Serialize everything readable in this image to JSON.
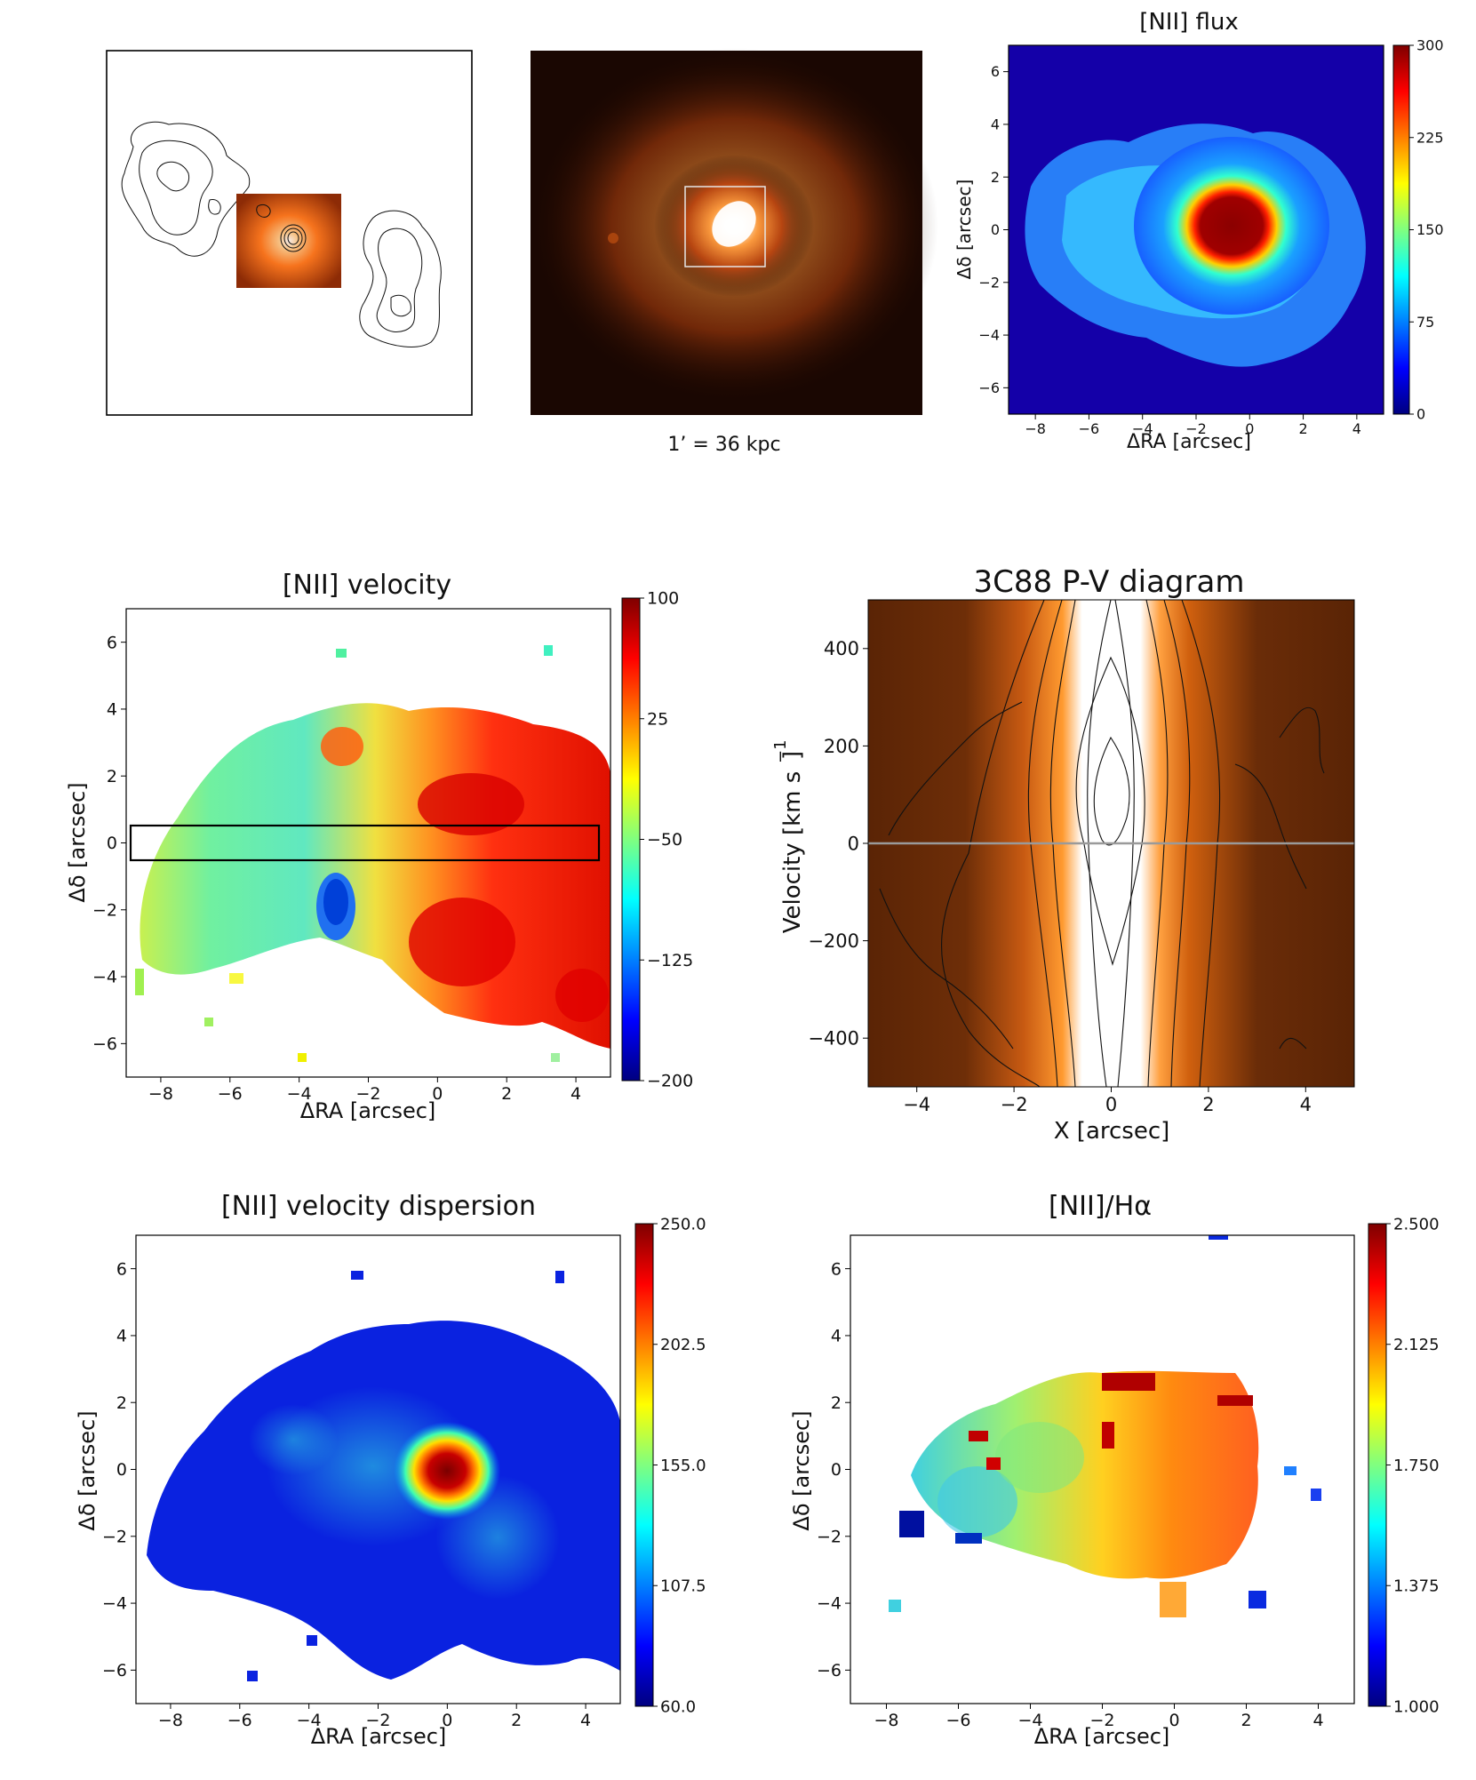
{
  "caption_scale": "1’ = 36 kpc",
  "chart_data": [
    {
      "id": "radio-overlay",
      "type": "image",
      "title": "",
      "description_elements": [
        "radio-contour-lobes",
        "optical-inset"
      ]
    },
    {
      "id": "optical",
      "type": "image",
      "title": "",
      "caption": "1’ = 36 kpc"
    },
    {
      "id": "flux",
      "type": "heatmap",
      "title": "[NII] flux",
      "xlabel": "ΔRA [arcsec]",
      "ylabel": "Δδ [arcsec]",
      "xlim": [
        -9,
        5
      ],
      "ylim": [
        -7,
        7
      ],
      "xticks": [
        "−8",
        "−6",
        "−4",
        "−2",
        "0",
        "2",
        "4"
      ],
      "yticks": [
        "−6",
        "−4",
        "−2",
        "0",
        "2",
        "4",
        "6"
      ],
      "colorbar": {
        "min": 0,
        "max": 300,
        "ticks": [
          "0",
          "75",
          "150",
          "225",
          "300"
        ],
        "colormap": "jet"
      }
    },
    {
      "id": "velocity",
      "type": "heatmap",
      "title": "[NII] velocity",
      "xlabel": "ΔRA [arcsec]",
      "ylabel": "Δδ [arcsec]",
      "xlim": [
        -9,
        5
      ],
      "ylim": [
        -7,
        7
      ],
      "xticks": [
        "−8",
        "−6",
        "−4",
        "−2",
        "0",
        "2",
        "4"
      ],
      "yticks": [
        "−6",
        "−4",
        "−2",
        "0",
        "2",
        "4",
        "6"
      ],
      "slit": {
        "x": [
          -8.9,
          4.8
        ],
        "y": [
          -0.55,
          0.5
        ]
      },
      "colorbar": {
        "min": -200,
        "max": 100,
        "ticks": [
          "−200",
          "−125",
          "−50",
          "25",
          "100"
        ],
        "colormap": "jet"
      }
    },
    {
      "id": "pv",
      "type": "heatmap",
      "title": "3C88 P-V diagram",
      "xlabel": "X [arcsec]",
      "ylabel": "Velocity [km s",
      "ylabel_sup": "−1",
      "ylabel_close": "]",
      "xlim": [
        -5,
        5
      ],
      "ylim": [
        -500,
        500
      ],
      "xticks": [
        "−4",
        "−2",
        "0",
        "2",
        "4"
      ],
      "yticks": [
        "−400",
        "−200",
        "0",
        "200",
        "400"
      ],
      "zero_line": 0
    },
    {
      "id": "dispersion",
      "type": "heatmap",
      "title": "[NII] velocity dispersion",
      "xlabel": "ΔRA [arcsec]",
      "ylabel": "Δδ [arcsec]",
      "xlim": [
        -9,
        5
      ],
      "ylim": [
        -7,
        7
      ],
      "xticks": [
        "−8",
        "−6",
        "−4",
        "−2",
        "0",
        "2",
        "4"
      ],
      "yticks": [
        "−6",
        "−4",
        "−2",
        "0",
        "2",
        "4",
        "6"
      ],
      "colorbar": {
        "min": 60,
        "max": 250,
        "ticks": [
          "60.0",
          "107.5",
          "155.0",
          "202.5",
          "250.0"
        ],
        "colormap": "jet"
      }
    },
    {
      "id": "ratio",
      "type": "heatmap",
      "title": "[NII]/Hα",
      "xlabel": "ΔRA [arcsec]",
      "ylabel": "Δδ [arcsec]",
      "xlim": [
        -9,
        5
      ],
      "ylim": [
        -7,
        7
      ],
      "xticks": [
        "−8",
        "−6",
        "−4",
        "−2",
        "0",
        "2",
        "4"
      ],
      "yticks": [
        "−6",
        "−4",
        "−2",
        "0",
        "2",
        "4",
        "6"
      ],
      "colorbar": {
        "min": 1.0,
        "max": 2.5,
        "ticks": [
          "1.000",
          "1.375",
          "1.750",
          "2.125",
          "2.500"
        ],
        "colormap": "jet"
      }
    }
  ]
}
